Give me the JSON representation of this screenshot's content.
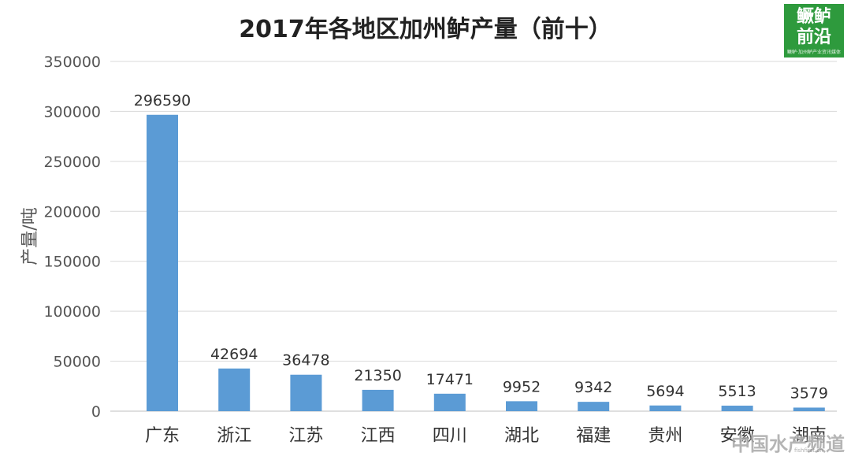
{
  "chart_data": {
    "type": "bar",
    "title": "2017年各地区加州鲈产量（前十）",
    "ylabel": "产量/吨",
    "xlabel": "",
    "categories": [
      "广东",
      "浙江",
      "江苏",
      "江西",
      "四川",
      "湖北",
      "福建",
      "贵州",
      "安徽",
      "湖南"
    ],
    "values": [
      296590,
      42694,
      36478,
      21350,
      17471,
      9952,
      9342,
      5694,
      5513,
      3579
    ],
    "ylim": [
      0,
      350000
    ],
    "yticks": [
      0,
      50000,
      100000,
      150000,
      200000,
      250000,
      300000,
      350000
    ],
    "grid": true,
    "bar_color": "#5b9bd5",
    "data_labels": true
  },
  "logo": {
    "line1": "鳜鲈",
    "line2": "前沿",
    "tagline": "鳜鲈·加州鲈产业资讯媒体"
  },
  "watermark": {
    "text": "中国水产频道",
    "sub": "fishfirst.cn"
  }
}
